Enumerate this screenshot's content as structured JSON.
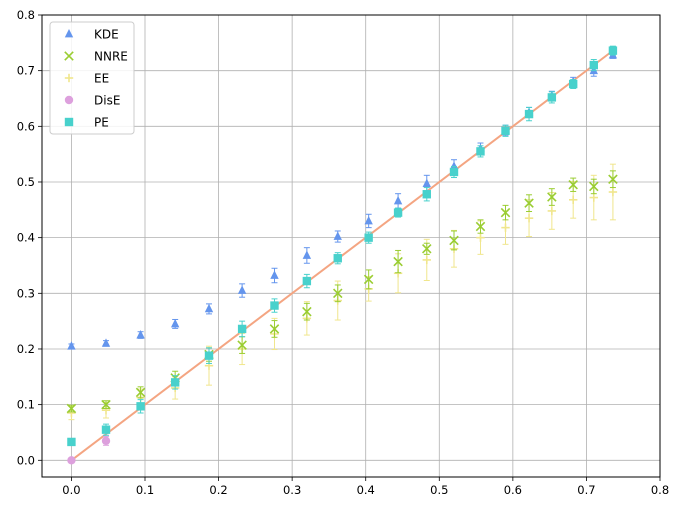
{
  "chart_data": {
    "type": "scatter",
    "title": "",
    "xlabel": "",
    "ylabel": "",
    "xlim": [
      -0.04,
      0.8
    ],
    "ylim": [
      -0.03,
      0.8
    ],
    "xticks": [
      "0.0",
      "0.1",
      "0.2",
      "0.3",
      "0.4",
      "0.5",
      "0.6",
      "0.7",
      "0.8"
    ],
    "yticks": [
      "0.0",
      "0.1",
      "0.2",
      "0.3",
      "0.4",
      "0.5",
      "0.6",
      "0.7",
      "0.8"
    ],
    "grid": true,
    "legend_position": "top-left",
    "x": [
      0.0,
      0.047,
      0.094,
      0.141,
      0.187,
      0.232,
      0.276,
      0.32,
      0.362,
      0.404,
      0.444,
      0.483,
      0.52,
      0.556,
      0.59,
      0.622,
      0.653,
      0.682,
      0.71,
      0.736
    ],
    "reference_line": {
      "color": "#f4a582",
      "from": [
        0.0,
        0.0
      ],
      "to": [
        0.736,
        0.736
      ]
    },
    "series": [
      {
        "name": "KDE",
        "marker": "triangle",
        "color": "#6495ed",
        "values": [
          0.205,
          0.21,
          0.225,
          0.245,
          0.272,
          0.305,
          0.332,
          0.368,
          0.402,
          0.43,
          0.466,
          0.497,
          0.528,
          0.56,
          0.593,
          0.625,
          0.655,
          0.68,
          0.7,
          0.728
        ],
        "errors": [
          0.004,
          0.005,
          0.006,
          0.008,
          0.009,
          0.012,
          0.013,
          0.014,
          0.01,
          0.012,
          0.013,
          0.015,
          0.012,
          0.01,
          0.009,
          0.009,
          0.008,
          0.008,
          0.01,
          0.006
        ]
      },
      {
        "name": "NNRE",
        "marker": "x",
        "color": "#9acd32",
        "values": [
          0.093,
          0.1,
          0.122,
          0.148,
          0.19,
          0.207,
          0.236,
          0.267,
          0.3,
          0.325,
          0.357,
          0.38,
          0.395,
          0.42,
          0.445,
          0.462,
          0.473,
          0.495,
          0.492,
          0.505
        ],
        "errors": [
          0.006,
          0.007,
          0.01,
          0.012,
          0.012,
          0.015,
          0.015,
          0.015,
          0.015,
          0.017,
          0.02,
          0.01,
          0.017,
          0.012,
          0.013,
          0.015,
          0.015,
          0.012,
          0.013,
          0.015
        ]
      },
      {
        "name": "EE",
        "marker": "plus",
        "color": "#f0e68c",
        "values": [
          0.085,
          0.09,
          0.113,
          0.13,
          0.17,
          0.2,
          0.227,
          0.255,
          0.287,
          0.308,
          0.336,
          0.36,
          0.38,
          0.4,
          0.418,
          0.435,
          0.448,
          0.468,
          0.472,
          0.482
        ],
        "errors": [
          0.012,
          0.014,
          0.015,
          0.02,
          0.035,
          0.028,
          0.028,
          0.03,
          0.035,
          0.022,
          0.035,
          0.037,
          0.033,
          0.03,
          0.03,
          0.033,
          0.033,
          0.033,
          0.04,
          0.05
        ]
      },
      {
        "name": "DisE",
        "marker": "circle",
        "color": "#dda0dd",
        "x": [
          0.0,
          0.047
        ],
        "values": [
          0.0,
          0.035
        ],
        "errors": [
          0.003,
          0.008
        ]
      },
      {
        "name": "PE",
        "marker": "square",
        "color": "#48d1cc",
        "values": [
          0.033,
          0.055,
          0.097,
          0.14,
          0.188,
          0.236,
          0.278,
          0.322,
          0.363,
          0.4,
          0.445,
          0.478,
          0.518,
          0.555,
          0.592,
          0.622,
          0.652,
          0.676,
          0.71,
          0.736
        ],
        "errors": [
          0.006,
          0.01,
          0.012,
          0.012,
          0.014,
          0.014,
          0.012,
          0.012,
          0.01,
          0.01,
          0.008,
          0.012,
          0.01,
          0.01,
          0.01,
          0.012,
          0.01,
          0.008,
          0.01,
          0.008
        ]
      }
    ]
  }
}
